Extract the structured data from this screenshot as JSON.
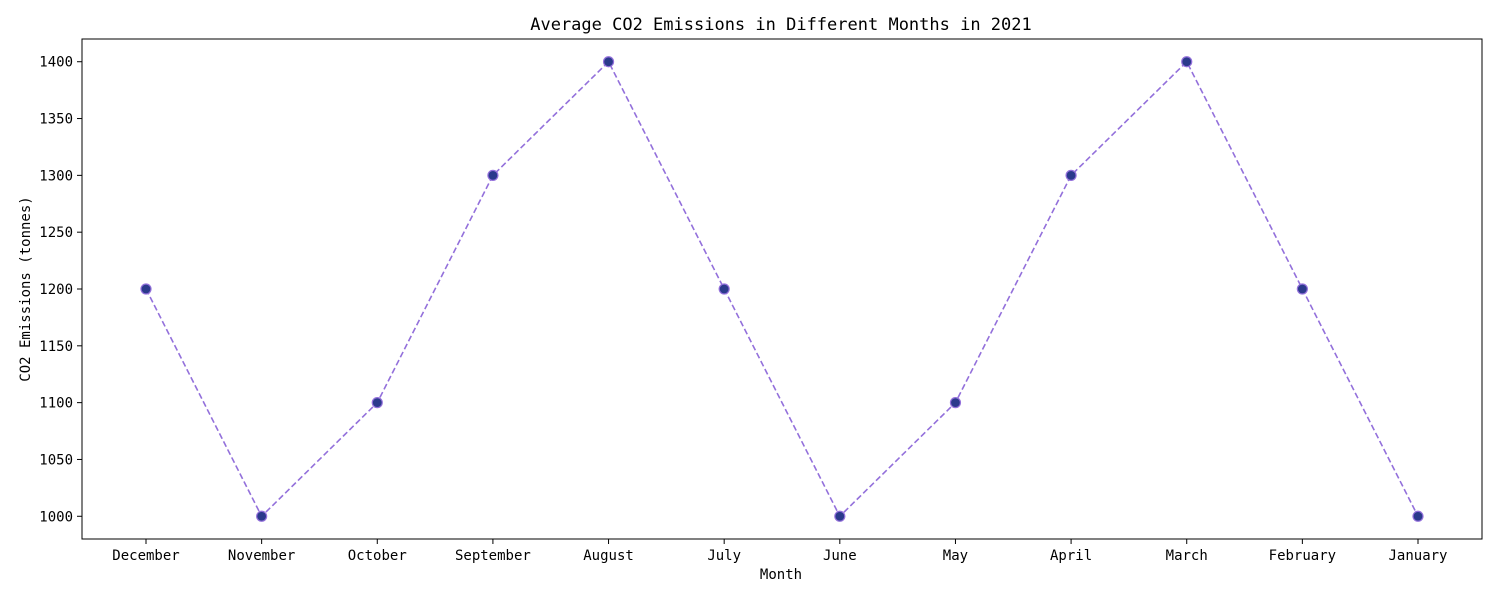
{
  "chart_data": {
    "type": "line",
    "title": "Average CO2 Emissions in Different Months in 2021",
    "xlabel": "Month",
    "ylabel": "CO2 Emissions (tonnes)",
    "categories": [
      "December",
      "November",
      "October",
      "September",
      "August",
      "July",
      "June",
      "May",
      "April",
      "March",
      "February",
      "January"
    ],
    "values": [
      1200,
      1000,
      1100,
      1300,
      1400,
      1200,
      1000,
      1100,
      1300,
      1400,
      1200,
      1000
    ],
    "ylim": [
      980,
      1420
    ],
    "yticks": [
      1000,
      1050,
      1100,
      1150,
      1200,
      1250,
      1300,
      1350,
      1400
    ],
    "grid": false,
    "line_style": "dashed",
    "colors": {
      "line": "#9370DB",
      "marker_fill": "#2B3A8C",
      "marker_edge": "#9370DB"
    }
  }
}
